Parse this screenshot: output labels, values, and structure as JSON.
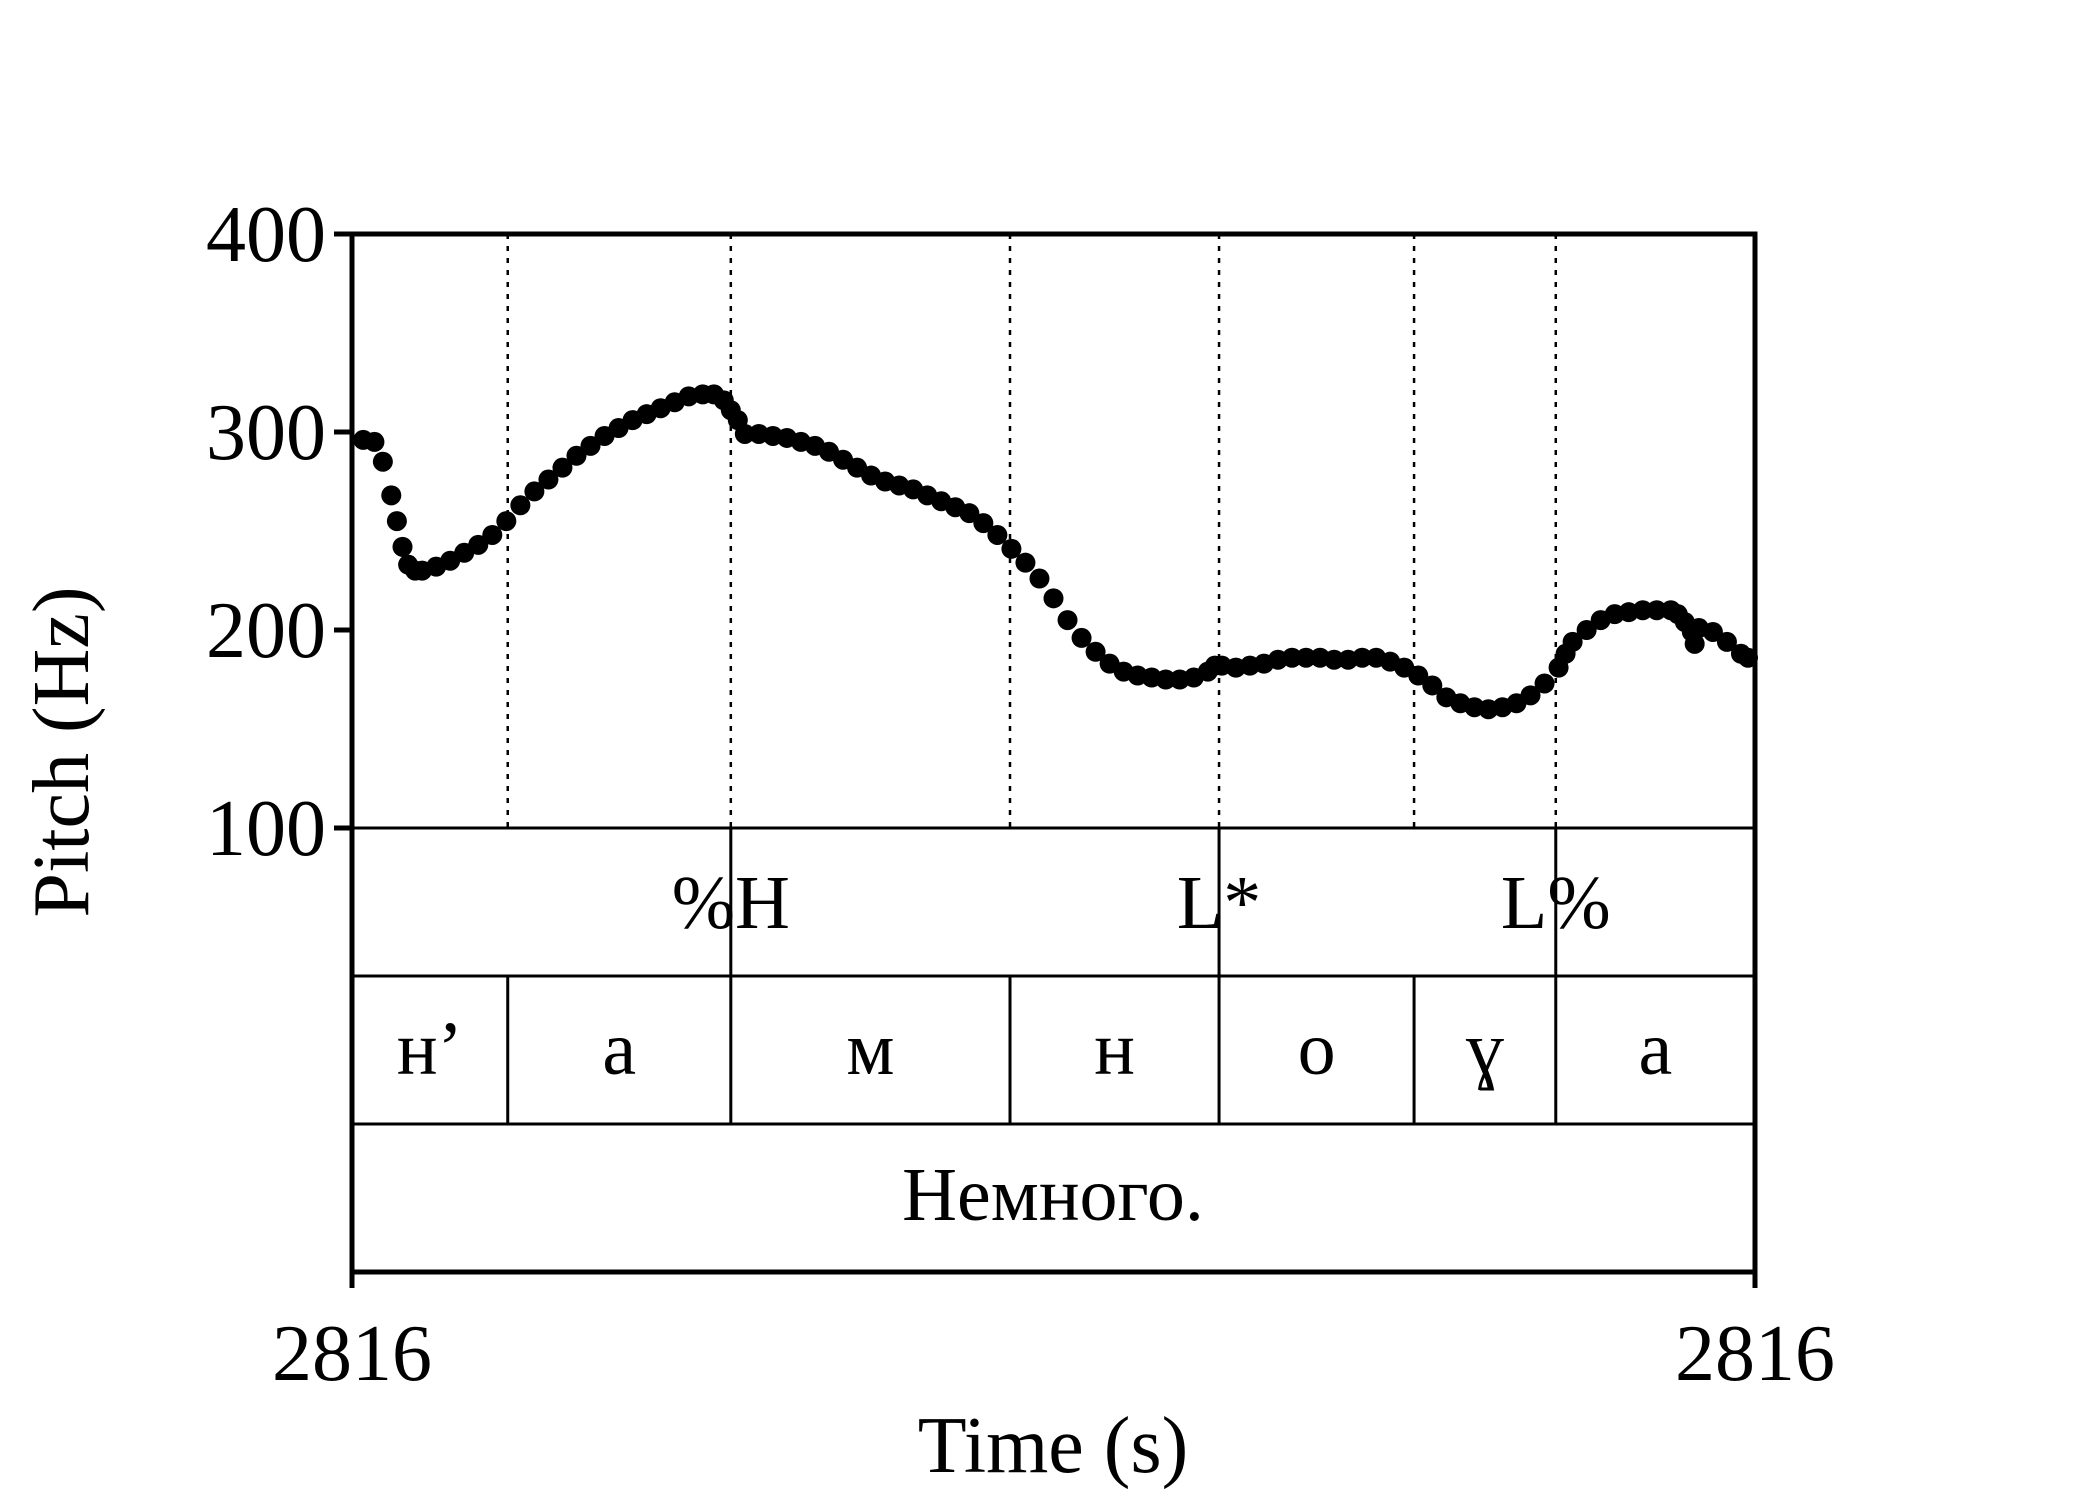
{
  "chart_data": {
    "type": "scatter",
    "xlabel": "Time (s)",
    "ylabel": "Pitch (Hz)",
    "x_tick_labels": [
      "2816",
      "2816"
    ],
    "y_ticks": [
      100,
      200,
      300,
      400
    ],
    "ylim": [
      100,
      400
    ],
    "x_unit": "fraction of displayed time window",
    "color": "#000000",
    "grid": false,
    "series": [
      {
        "values": [
          [
            0.008,
            296
          ],
          [
            0.016,
            295
          ],
          [
            0.022,
            285
          ],
          [
            0.028,
            268
          ],
          [
            0.032,
            255
          ],
          [
            0.036,
            242
          ],
          [
            0.04,
            233
          ],
          [
            0.045,
            230
          ],
          [
            0.05,
            230
          ],
          [
            0.06,
            232
          ],
          [
            0.07,
            235
          ],
          [
            0.08,
            239
          ],
          [
            0.09,
            243
          ],
          [
            0.1,
            248
          ],
          [
            0.11,
            255
          ],
          [
            0.12,
            263
          ],
          [
            0.13,
            270
          ],
          [
            0.14,
            276
          ],
          [
            0.15,
            282
          ],
          [
            0.16,
            288
          ],
          [
            0.17,
            293
          ],
          [
            0.18,
            298
          ],
          [
            0.19,
            302
          ],
          [
            0.2,
            306
          ],
          [
            0.21,
            309
          ],
          [
            0.22,
            312
          ],
          [
            0.23,
            315
          ],
          [
            0.24,
            318
          ],
          [
            0.25,
            319
          ],
          [
            0.258,
            319
          ],
          [
            0.265,
            316
          ],
          [
            0.27,
            311
          ],
          [
            0.275,
            306
          ],
          [
            0.28,
            299
          ],
          [
            0.29,
            299
          ],
          [
            0.3,
            298
          ],
          [
            0.31,
            297
          ],
          [
            0.32,
            295
          ],
          [
            0.33,
            293
          ],
          [
            0.34,
            290
          ],
          [
            0.35,
            286
          ],
          [
            0.36,
            282
          ],
          [
            0.37,
            278
          ],
          [
            0.38,
            275
          ],
          [
            0.39,
            273
          ],
          [
            0.4,
            271
          ],
          [
            0.41,
            268
          ],
          [
            0.42,
            265
          ],
          [
            0.43,
            262
          ],
          [
            0.44,
            259
          ],
          [
            0.45,
            254
          ],
          [
            0.46,
            248
          ],
          [
            0.47,
            241
          ],
          [
            0.48,
            234
          ],
          [
            0.49,
            226
          ],
          [
            0.5,
            216
          ],
          [
            0.51,
            205
          ],
          [
            0.52,
            196
          ],
          [
            0.53,
            189
          ],
          [
            0.54,
            183
          ],
          [
            0.55,
            179
          ],
          [
            0.56,
            177
          ],
          [
            0.57,
            176
          ],
          [
            0.58,
            175
          ],
          [
            0.59,
            175
          ],
          [
            0.6,
            176
          ],
          [
            0.61,
            179
          ],
          [
            0.615,
            182
          ],
          [
            0.62,
            182
          ],
          [
            0.63,
            181
          ],
          [
            0.64,
            182
          ],
          [
            0.65,
            183
          ],
          [
            0.66,
            185
          ],
          [
            0.67,
            186
          ],
          [
            0.68,
            186
          ],
          [
            0.69,
            186
          ],
          [
            0.7,
            185
          ],
          [
            0.71,
            185
          ],
          [
            0.72,
            186
          ],
          [
            0.73,
            186
          ],
          [
            0.74,
            184
          ],
          [
            0.75,
            181
          ],
          [
            0.76,
            177
          ],
          [
            0.77,
            172
          ],
          [
            0.78,
            166
          ],
          [
            0.79,
            163
          ],
          [
            0.8,
            161
          ],
          [
            0.81,
            160
          ],
          [
            0.82,
            161
          ],
          [
            0.83,
            163
          ],
          [
            0.84,
            167
          ],
          [
            0.85,
            173
          ],
          [
            0.86,
            181
          ],
          [
            0.865,
            188
          ],
          [
            0.87,
            194
          ],
          [
            0.88,
            200
          ],
          [
            0.89,
            205
          ],
          [
            0.9,
            208
          ],
          [
            0.91,
            209
          ],
          [
            0.92,
            210
          ],
          [
            0.93,
            210
          ],
          [
            0.94,
            210
          ],
          [
            0.945,
            208
          ],
          [
            0.95,
            204
          ],
          [
            0.955,
            199
          ],
          [
            0.96,
            201
          ],
          [
            0.97,
            199
          ],
          [
            0.98,
            194
          ],
          [
            0.99,
            188
          ],
          [
            0.995,
            186
          ],
          [
            0.957,
            193
          ]
        ]
      }
    ]
  },
  "tiers": {
    "tones": {
      "boundaries": [
        0.27,
        0.618,
        0.858
      ],
      "labels": [
        {
          "text": "%H",
          "at": 0.27
        },
        {
          "text": "L*",
          "at": 0.618
        },
        {
          "text": "L%",
          "at": 0.858
        }
      ]
    },
    "segments": {
      "boundaries": [
        0.111,
        0.27,
        0.469,
        0.618,
        0.757,
        0.858
      ],
      "labels": [
        "н’",
        "а",
        "м",
        "н",
        "о",
        "ɣ",
        "а"
      ]
    },
    "word": {
      "text": "Немного."
    }
  }
}
